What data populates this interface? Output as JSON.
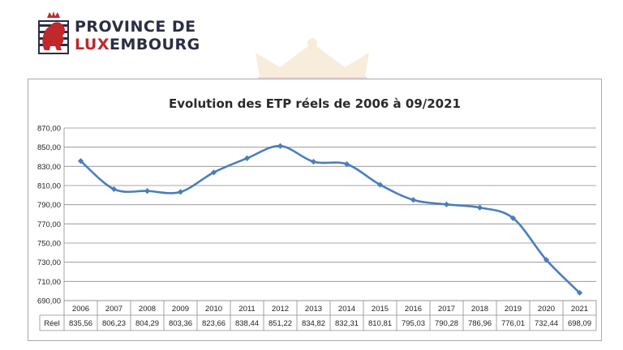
{
  "logo": {
    "line1": "PROVINCE DE",
    "line2_accent": "LUX",
    "line2_rest": "EMBOURG",
    "accent_color": "#c0282b",
    "text_color": "#2b2d42"
  },
  "chart_data": {
    "type": "line",
    "title": "Evolution des ETP réels de 2006 à 09/2021",
    "categories": [
      "2006",
      "2007",
      "2008",
      "2009",
      "2010",
      "2011",
      "2012",
      "2013",
      "2014",
      "2015",
      "2016",
      "2017",
      "2018",
      "2019",
      "2020",
      "2021"
    ],
    "series": [
      {
        "name": "Réel",
        "values": [
          835.56,
          806.23,
          804.29,
          803.36,
          823.66,
          838.44,
          851.22,
          834.82,
          832.31,
          810.81,
          795.03,
          790.28,
          786.96,
          776.01,
          732.44,
          698.09
        ],
        "labels": [
          "835,56",
          "806,23",
          "804,29",
          "803,36",
          "823,66",
          "838,44",
          "851,22",
          "834,82",
          "832,31",
          "810,81",
          "795,03",
          "790,28",
          "786,96",
          "776,01",
          "732,44",
          "698,09"
        ],
        "color": "#4a7ebb"
      }
    ],
    "ylim": [
      690,
      870
    ],
    "yticks": [
      690,
      710,
      730,
      750,
      770,
      790,
      810,
      830,
      850,
      870
    ],
    "ytick_labels": [
      "690,00",
      "710,00",
      "730,00",
      "750,00",
      "770,00",
      "790,00",
      "810,00",
      "830,00",
      "850,00",
      "870,00"
    ],
    "grid": true,
    "legend": "data table below chart"
  }
}
